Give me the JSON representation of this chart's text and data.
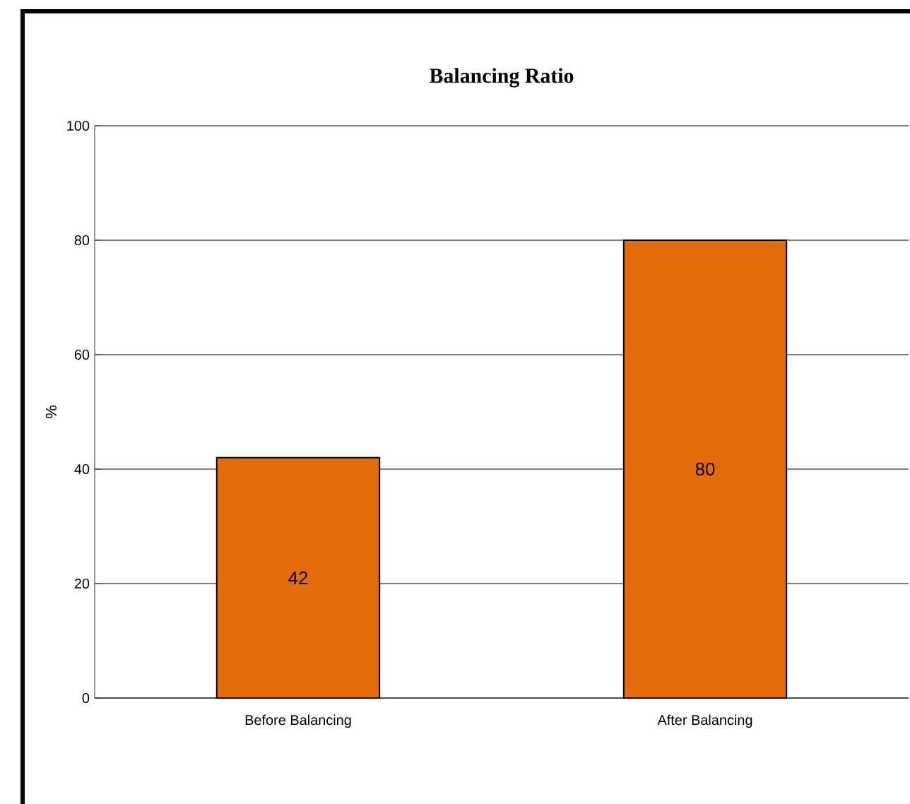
{
  "chart_data": {
    "type": "bar",
    "title": "Balancing Ratio",
    "ylabel": "%",
    "categories": [
      "Before Balancing",
      "After Balancing"
    ],
    "values": [
      42,
      80
    ],
    "color": "#e46c0a",
    "ylim": [
      0,
      100
    ],
    "yticks": [
      0,
      20,
      40,
      60,
      80,
      100
    ],
    "grid": "y",
    "data_labels": true
  }
}
